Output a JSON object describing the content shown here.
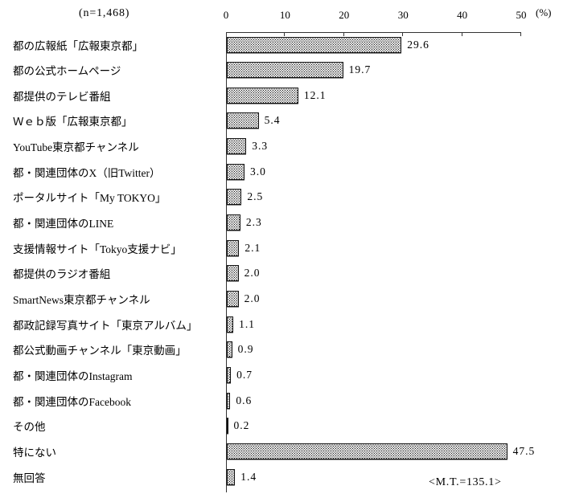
{
  "header": {
    "n_label": "(n=1,468)"
  },
  "axis": {
    "unit_label": "(%)",
    "ticks": [
      0,
      10,
      20,
      30,
      40,
      50
    ]
  },
  "footer": {
    "mt_label": "<M.T.=135.1>"
  },
  "chart_data": {
    "type": "bar",
    "orientation": "horizontal",
    "title": "",
    "sample_size_label": "(n=1,468)",
    "sample_size": 1468,
    "unit": "%",
    "xlim": [
      0,
      50
    ],
    "xticks": [
      0,
      10,
      20,
      30,
      40,
      50
    ],
    "grid": false,
    "legend_position": "none",
    "bar_fill": "halftone-dot-pattern",
    "bar_border_color": "#000000",
    "mt_total": 135.1,
    "categories": [
      "都の広報紙「広報東京都」",
      "都の公式ホームページ",
      "都提供のテレビ番組",
      "Ｗｅｂ版「広報東京都」",
      "YouTube東京都チャンネル",
      "都・関連団体のX（旧Twitter）",
      "ポータルサイト「My TOKYO」",
      "都・関連団体のLINE",
      "支援情報サイト「Tokyo支援ナビ」",
      "都提供のラジオ番組",
      "SmartNews東京都チャンネル",
      "都政記録写真サイト「東京アルバム」",
      "都公式動画チャンネル「東京動画」",
      "都・関連団体のInstagram",
      "都・関連団体のFacebook",
      "その他",
      "特にない",
      "無回答"
    ],
    "values": [
      29.6,
      19.7,
      12.1,
      5.4,
      3.3,
      3.0,
      2.5,
      2.3,
      2.1,
      2.0,
      2.0,
      1.1,
      0.9,
      0.7,
      0.6,
      0.2,
      47.5,
      1.4
    ]
  }
}
